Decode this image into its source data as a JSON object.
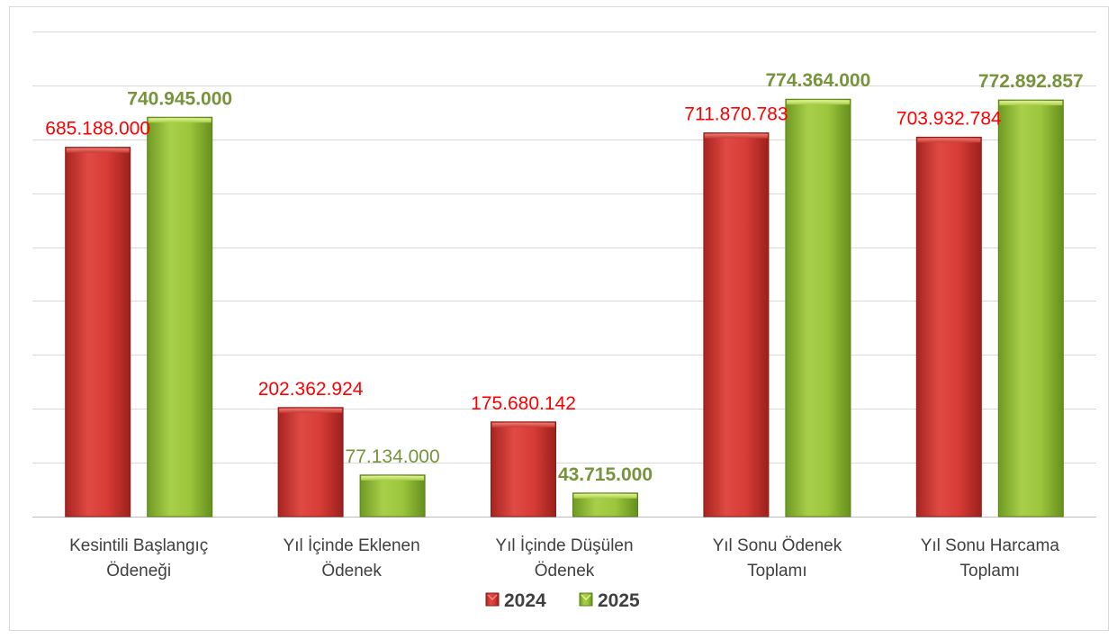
{
  "chart_data": {
    "type": "bar",
    "categories": [
      [
        "Kesintili Başlangıç",
        "Ödeneği"
      ],
      [
        "Yıl İçinde Eklenen",
        "Ödenek"
      ],
      [
        "Yıl İçinde Düşülen",
        "Ödenek"
      ],
      [
        "Yıl Sonu Ödenek",
        "Toplamı"
      ],
      [
        "Yıl Sonu Harcama",
        "Toplamı"
      ]
    ],
    "series": [
      {
        "name": "2024",
        "color": "#c0302b",
        "values": [
          685188000,
          202362924,
          175680142,
          711870783,
          703932784
        ],
        "labels": [
          "685.188.000",
          "202.362.924",
          "175.680.142",
          "711.870.783",
          "703.932.784"
        ]
      },
      {
        "name": "2025",
        "color": "#8db534",
        "values": [
          740945000,
          77134000,
          43715000,
          774364000,
          772892857
        ],
        "labels": [
          "740.945.000",
          "77.134.000",
          "43.715.000",
          "774.364.000",
          "772.892.857"
        ],
        "label_bold": [
          true,
          false,
          true,
          true,
          true
        ]
      }
    ],
    "ylim": [
      0,
      900000000
    ],
    "grid": true,
    "legend": "bottom"
  }
}
